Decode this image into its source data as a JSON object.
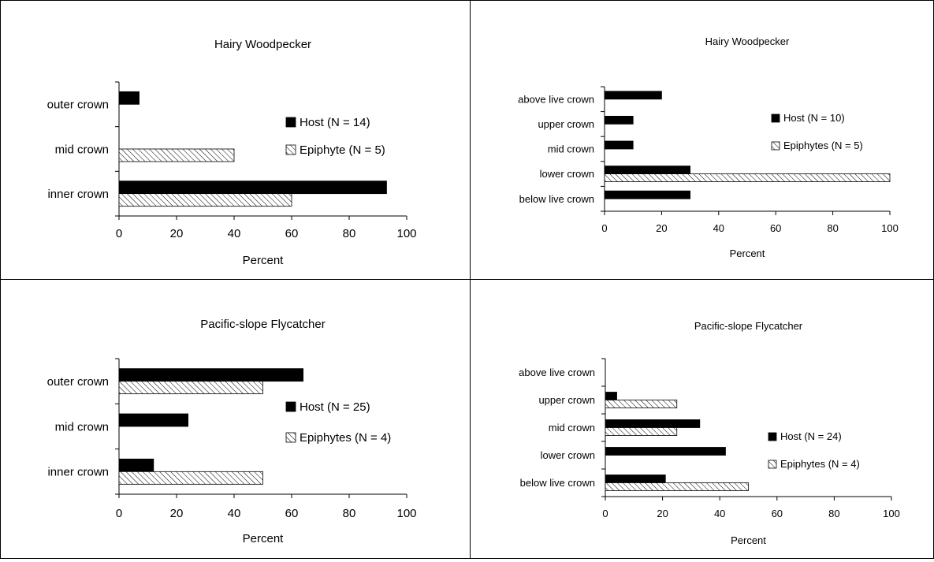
{
  "chart_data": [
    {
      "type": "bar",
      "orientation": "horizontal",
      "title": "Hairy Woodpecker",
      "xlabel": "Percent",
      "ylabel": "",
      "xlim": [
        0,
        100
      ],
      "xticks": [
        "0",
        "20",
        "40",
        "60",
        "80",
        "100"
      ],
      "categories": [
        "outer crown",
        "mid crown",
        "inner crown"
      ],
      "series": [
        {
          "name": "Host (N = 14)",
          "pattern": "solid",
          "values": [
            7,
            0,
            93
          ]
        },
        {
          "name": "Epiphyte (N = 5)",
          "pattern": "hatched",
          "values": [
            0,
            40,
            60
          ]
        }
      ],
      "legend": "right",
      "grid": false
    },
    {
      "type": "bar",
      "orientation": "horizontal",
      "title": "Hairy Woodpecker",
      "xlabel": "Percent",
      "ylabel": "",
      "xlim": [
        0,
        100
      ],
      "xticks": [
        "0",
        "20",
        "40",
        "60",
        "80",
        "100"
      ],
      "categories": [
        "above live crown",
        "upper crown",
        "mid crown",
        "lower crown",
        "below live crown"
      ],
      "series": [
        {
          "name": "Host (N = 10)",
          "pattern": "solid",
          "values": [
            20,
            10,
            10,
            30,
            30
          ]
        },
        {
          "name": "Epiphytes (N = 5)",
          "pattern": "hatched",
          "values": [
            0,
            0,
            0,
            100,
            0
          ]
        }
      ],
      "legend": "right",
      "grid": false
    },
    {
      "type": "bar",
      "orientation": "horizontal",
      "title": "Pacific-slope Flycatcher",
      "xlabel": "Percent",
      "ylabel": "",
      "xlim": [
        0,
        100
      ],
      "xticks": [
        "0",
        "20",
        "40",
        "60",
        "80",
        "100"
      ],
      "categories": [
        "outer crown",
        "mid crown",
        "inner crown"
      ],
      "series": [
        {
          "name": "Host (N = 25)",
          "pattern": "solid",
          "values": [
            64,
            24,
            12
          ]
        },
        {
          "name": "Epiphytes (N = 4)",
          "pattern": "hatched",
          "values": [
            50,
            0,
            50
          ]
        }
      ],
      "legend": "right",
      "grid": false
    },
    {
      "type": "bar",
      "orientation": "horizontal",
      "title": "Pacific-slope Flycatcher",
      "xlabel": "Percent",
      "ylabel": "",
      "xlim": [
        0,
        100
      ],
      "xticks": [
        "0",
        "20",
        "40",
        "60",
        "80",
        "100"
      ],
      "categories": [
        "above live crown",
        "upper crown",
        "mid crown",
        "lower crown",
        "below live crown"
      ],
      "series": [
        {
          "name": "Host (N = 24)",
          "pattern": "solid",
          "values": [
            0,
            4,
            33,
            42,
            21
          ]
        },
        {
          "name": "Epiphytes (N = 4)",
          "pattern": "hatched",
          "values": [
            0,
            25,
            25,
            0,
            50
          ]
        }
      ],
      "legend": "right",
      "grid": false
    }
  ],
  "colors": {
    "bar_solid": "#000000",
    "border": "#000000",
    "background": "#ffffff"
  }
}
